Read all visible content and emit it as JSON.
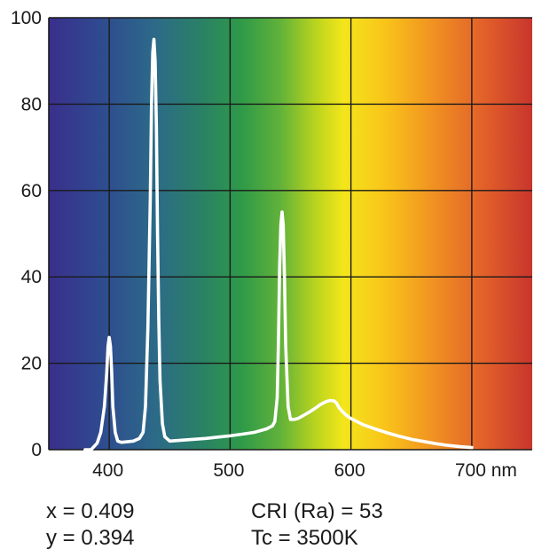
{
  "chart_data": {
    "type": "line",
    "title": "",
    "xlabel": "",
    "ylabel": "",
    "x_unit": "nm",
    "xlim": [
      350,
      750
    ],
    "ylim": [
      0,
      100
    ],
    "x_ticks": [
      400,
      500,
      600,
      700
    ],
    "x_tick_labels": [
      "400",
      "500",
      "600",
      "700 nm"
    ],
    "y_ticks": [
      0,
      20,
      40,
      60,
      80,
      100
    ],
    "y_tick_labels": [
      "0",
      "20",
      "40",
      "60",
      "80",
      "100"
    ],
    "grid": true,
    "background": "visible spectrum gradient (violet to red)",
    "line_color": "#ffffff",
    "series": [
      {
        "x": [
          380,
          385,
          390,
          393,
          396,
          398,
          399,
          400,
          401,
          402,
          403,
          405,
          407,
          410,
          414,
          420,
          425,
          428,
          430,
          432,
          434,
          435,
          436,
          437,
          438,
          439,
          440,
          441,
          442,
          444,
          446,
          450,
          460,
          480,
          500,
          510,
          520,
          530,
          535,
          537,
          539,
          540,
          541,
          542,
          543,
          544,
          545,
          546,
          548,
          550,
          553,
          556,
          560,
          565,
          570,
          575,
          580,
          583,
          586,
          588,
          590,
          593,
          596,
          600,
          610,
          620,
          630,
          640,
          650,
          660,
          670,
          680,
          690,
          700
        ],
        "values": [
          0,
          0,
          1.5,
          4,
          10,
          18,
          24,
          26,
          24,
          18,
          10,
          4,
          2,
          1.7,
          1.8,
          2,
          2.6,
          4,
          10,
          28,
          58,
          80,
          92,
          95,
          90,
          75,
          50,
          30,
          16,
          6,
          3,
          2,
          2.2,
          2.6,
          3.2,
          3.6,
          4,
          4.8,
          5.5,
          6.5,
          12,
          25,
          42,
          52,
          55,
          52,
          40,
          24,
          10,
          7,
          7,
          7.2,
          7.8,
          8.6,
          9.5,
          10.5,
          11.2,
          11.4,
          11.3,
          10.8,
          9.8,
          8.8,
          8,
          7.2,
          5.8,
          4.8,
          3.9,
          3.1,
          2.4,
          1.9,
          1.4,
          1.0,
          0.7,
          0.5
        ]
      }
    ]
  },
  "specs": {
    "x_line": "x = 0.409",
    "y_line": "y = 0.394",
    "cri_line": "CRI (Ra) = 53",
    "tc_line": "Tc = 3500K"
  }
}
